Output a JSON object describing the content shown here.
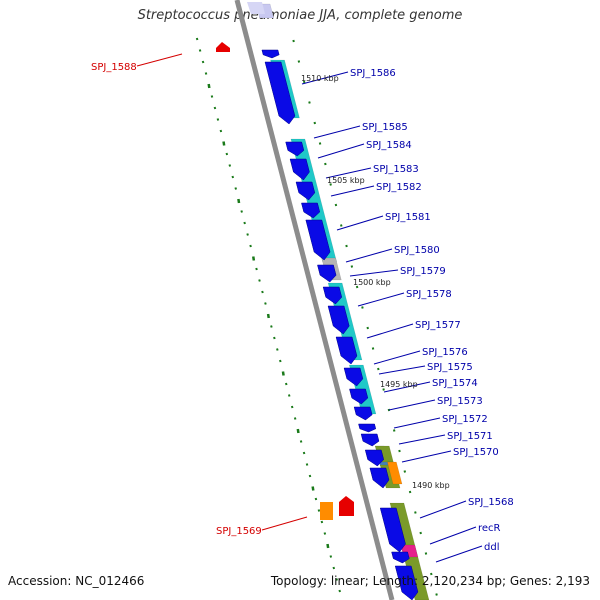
{
  "title": "Streptococcus pneumoniae JJA, complete genome",
  "footer": {
    "accession": "Accession: NC_012466",
    "topology": "Topology: linear; Length: 2,120,234 bp; Genes: 2,193"
  },
  "colors": {
    "backbone": "#8c8c8c",
    "cds_strand": "#0a0ae6",
    "blast_hit": "#20c8c8",
    "olive": "#7a9a2a",
    "gray_feature": "#b4b4b4",
    "orange": "#ff8c00",
    "red": "#e60000",
    "magenta": "#e6208c",
    "tick": "#1a7a1a",
    "label_blue": "#0000aa",
    "label_red": "#d40000"
  },
  "kbp_ticks": [
    "1510 kbp",
    "1505 kbp",
    "1500 kbp",
    "1495 kbp",
    "1490 kbp"
  ],
  "gene_labels": [
    {
      "text": "SPJ_1586",
      "color": "blue"
    },
    {
      "text": "SPJ_1585",
      "color": "blue"
    },
    {
      "text": "SPJ_1584",
      "color": "blue"
    },
    {
      "text": "SPJ_1583",
      "color": "blue"
    },
    {
      "text": "SPJ_1582",
      "color": "blue"
    },
    {
      "text": "SPJ_1581",
      "color": "blue"
    },
    {
      "text": "SPJ_1580",
      "color": "blue"
    },
    {
      "text": "SPJ_1579",
      "color": "blue"
    },
    {
      "text": "SPJ_1578",
      "color": "blue"
    },
    {
      "text": "SPJ_1577",
      "color": "blue"
    },
    {
      "text": "SPJ_1576",
      "color": "blue"
    },
    {
      "text": "SPJ_1575",
      "color": "blue"
    },
    {
      "text": "SPJ_1574",
      "color": "blue"
    },
    {
      "text": "SPJ_1573",
      "color": "blue"
    },
    {
      "text": "SPJ_1572",
      "color": "blue"
    },
    {
      "text": "SPJ_1571",
      "color": "blue"
    },
    {
      "text": "SPJ_1570",
      "color": "blue"
    },
    {
      "text": "SPJ_1568",
      "color": "blue"
    },
    {
      "text": "recR",
      "color": "blue"
    },
    {
      "text": "ddl",
      "color": "blue"
    },
    {
      "text": "SPJ_1588",
      "color": "red"
    },
    {
      "text": "SPJ_1569",
      "color": "red"
    }
  ]
}
